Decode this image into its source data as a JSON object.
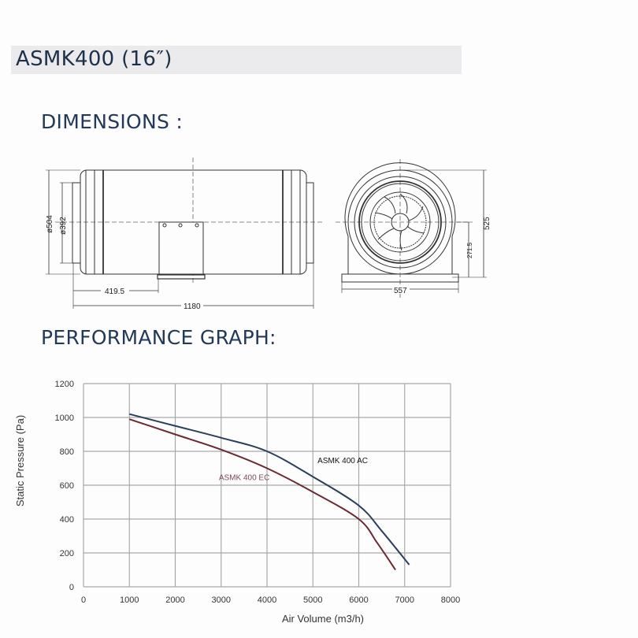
{
  "header": {
    "title": "ASMK400 (16″)"
  },
  "sections": {
    "dimensions_heading": "DIMENSIONS :",
    "performance_heading": "PERFORMANCE GRAPH:"
  },
  "dimensions": {
    "side_view": {
      "outer_diameter": "ø504",
      "duct_diameter": "ø392",
      "bracket_offset": "419.5",
      "total_length": "1180"
    },
    "front_view": {
      "width": "557",
      "height": "525",
      "center_height": "271.5"
    }
  },
  "chart_data": {
    "type": "line",
    "title": "",
    "xlabel": "Air Volume (m3/h)",
    "ylabel": "Static Pressure (Pa)",
    "xlim": [
      0,
      8000
    ],
    "ylim": [
      0,
      1200
    ],
    "x_ticks": [
      "0",
      "1000",
      "2000",
      "3000",
      "4000",
      "5000",
      "6000",
      "7000",
      "8000"
    ],
    "y_ticks": [
      "0",
      "200",
      "400",
      "600",
      "800",
      "1000",
      "1200"
    ],
    "grid": true,
    "series": [
      {
        "name": "ASMK 400 AC",
        "color": "#2b3f5c",
        "x": [
          1000,
          2000,
          3000,
          4000,
          5000,
          6000,
          6500,
          7100
        ],
        "y": [
          1020,
          950,
          880,
          800,
          650,
          480,
          330,
          130
        ]
      },
      {
        "name": "ASMK 400 EC",
        "color": "#6b2a32",
        "x": [
          1000,
          2000,
          3000,
          4000,
          5000,
          6000,
          6400,
          6800
        ],
        "y": [
          990,
          900,
          810,
          700,
          560,
          400,
          260,
          100
        ]
      }
    ],
    "annotations": [
      {
        "text": "ASMK 400 AC",
        "x": 5100,
        "y": 730
      },
      {
        "text": "ASMK 400 EC",
        "x": 2950,
        "y": 630
      }
    ]
  }
}
